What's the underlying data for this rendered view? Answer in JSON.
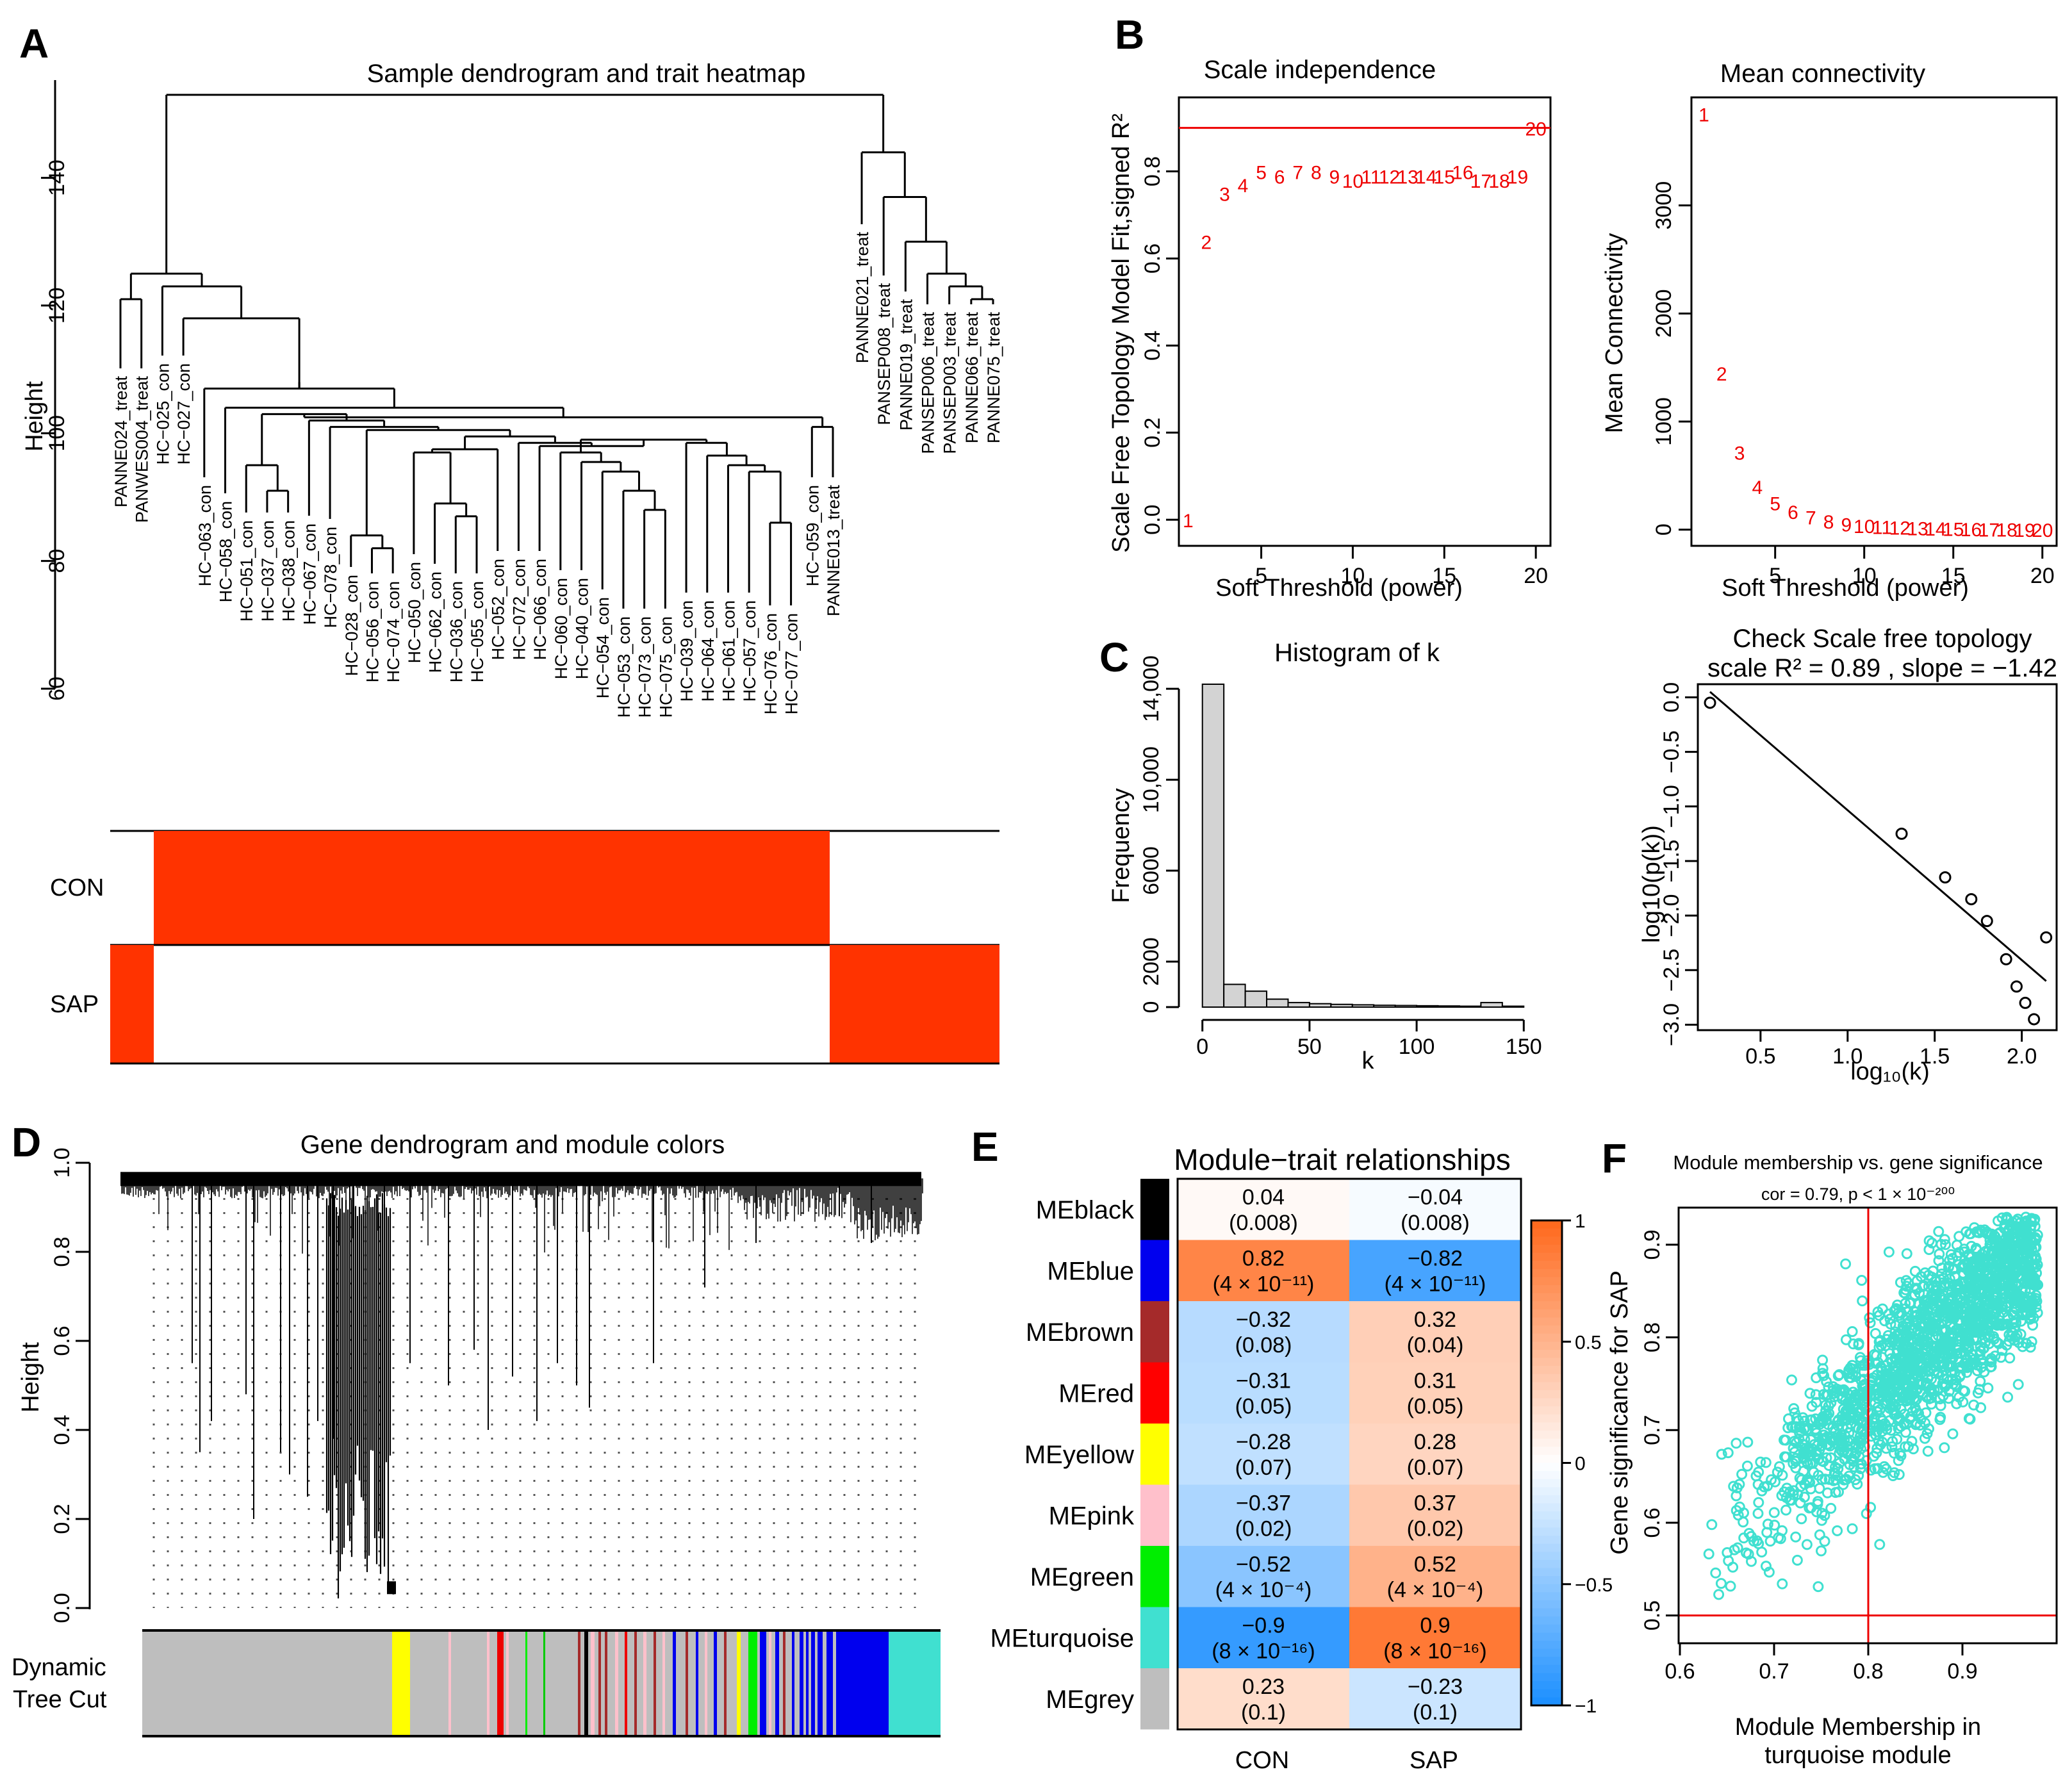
{
  "panels": {
    "A": {
      "label": "A",
      "title": "Sample dendrogram and trait heatmap",
      "ylabel": "Height",
      "yticks": [
        "60",
        "80",
        "100",
        "120",
        "140"
      ],
      "leaves": [
        "PANNE024_treat",
        "PANWES004_treat",
        "HC−025_con",
        "HC−027_con",
        "HC−063_con",
        "HC−058_con",
        "HC−051_con",
        "HC−037_con",
        "HC−038_con",
        "HC−067_con",
        "HC−078_con",
        "HC−028_con",
        "HC−056_con",
        "HC−074_con",
        "HC−050_con",
        "HC−062_con",
        "HC−036_con",
        "HC−055_con",
        "HC−052_con",
        "HC−072_con",
        "HC−066_con",
        "HC−060_con",
        "HC−040_con",
        "HC−054_con",
        "HC−053_con",
        "HC−073_con",
        "HC−075_con",
        "HC−039_con",
        "HC−064_con",
        "HC−061_con",
        "HC−057_con",
        "HC−076_con",
        "HC−077_con",
        "HC−059_con",
        "PANNE013_treat",
        "PANNE021_treat",
        "PANSEP008_treat",
        "PANNE019_treat",
        "PANSEP006_treat",
        "PANSEP003_treat",
        "PANNE066_treat",
        "PANNE075_treat"
      ],
      "traits": [
        "CON",
        "SAP"
      ],
      "trait_color": "#ff3300"
    },
    "B": {
      "label": "B",
      "left_title": "Scale independence",
      "left_ylabel": "Scale Free Topology Model Fit,signed R²",
      "right_title": "Mean connectivity",
      "right_ylabel": "Mean Connectivity",
      "xlabel": "Soft Threshold (power)",
      "xticks_left": [
        "5",
        "10",
        "15",
        "20"
      ],
      "yticks_left": [
        "0.0",
        "0.2",
        "0.4",
        "0.6",
        "0.8"
      ],
      "xticks_right": [
        "5",
        "10",
        "15",
        "20"
      ],
      "yticks_right": [
        "0",
        "1000",
        "2000",
        "3000"
      ]
    },
    "C": {
      "label": "C",
      "left_title": "Histogram of k",
      "left_xlabel": "k",
      "left_ylabel": "Frequency",
      "left_xticks": [
        "0",
        "50",
        "100",
        "150"
      ],
      "left_yticks": [
        "0",
        "2000",
        "6000",
        "10,000",
        "14,000"
      ],
      "right_title": "Check Scale free topology",
      "right_subtitle": "scale R² = 0.89 , slope = −1.42",
      "right_xlabel": "log₁₀(k)",
      "right_ylabel": "log10(p(k))",
      "right_xticks": [
        "0.5",
        "1.0",
        "1.5",
        "2.0"
      ],
      "right_yticks": [
        "0.0",
        "−0.5",
        "−1.0",
        "−1.5",
        "−2.0",
        "−2.5",
        "−3.0"
      ]
    },
    "D": {
      "label": "D",
      "title": "Gene dendrogram and module colors",
      "ylabel": "Height",
      "yticks": [
        "0.0",
        "0.2",
        "0.4",
        "0.6",
        "0.8",
        "1.0"
      ],
      "colorbar_label_1": "Dynamic",
      "colorbar_label_2": "Tree Cut"
    },
    "E": {
      "label": "E",
      "title": "Module−trait relationships",
      "columns": [
        "CON",
        "SAP"
      ],
      "legend_ticks": [
        "1",
        "0.5",
        "0",
        "−0.5",
        "−1"
      ]
    },
    "F": {
      "label": "F",
      "title": "Module membership vs. gene significance",
      "subtitle": "cor = 0.79, p < 1 × 10⁻²⁰⁰",
      "xlabel_1": "Module Membership in",
      "xlabel_2": "turquoise module",
      "ylabel": "Gene significance for SAP",
      "xticks": [
        "0.6",
        "0.7",
        "0.8",
        "0.9"
      ],
      "yticks": [
        "0.5",
        "0.6",
        "0.7",
        "0.8",
        "0.9"
      ],
      "point_color": "#40e0d0",
      "line_color": "#ee0000"
    }
  },
  "chart_data": [
    {
      "type": "scatter",
      "title": "Scale independence",
      "xlabel": "Soft Threshold (power)",
      "ylabel": "Scale Free Topology Model Fit,signed R²",
      "x": [
        1,
        2,
        3,
        4,
        5,
        6,
        7,
        8,
        9,
        10,
        11,
        12,
        13,
        14,
        15,
        16,
        17,
        18,
        19,
        20
      ],
      "y": [
        0.0,
        0.64,
        0.75,
        0.77,
        0.8,
        0.79,
        0.8,
        0.8,
        0.79,
        0.78,
        0.79,
        0.79,
        0.79,
        0.79,
        0.79,
        0.8,
        0.78,
        0.78,
        0.79,
        0.9
      ],
      "xlim": [
        1,
        20
      ],
      "ylim": [
        0,
        0.9
      ],
      "hline": 0.9
    },
    {
      "type": "scatter",
      "title": "Mean connectivity",
      "xlabel": "Soft Threshold (power)",
      "ylabel": "Mean Connectivity",
      "x": [
        1,
        2,
        3,
        4,
        5,
        6,
        7,
        8,
        9,
        10,
        11,
        12,
        13,
        14,
        15,
        16,
        17,
        18,
        19,
        20
      ],
      "y": [
        3850,
        1450,
        720,
        400,
        250,
        170,
        120,
        80,
        55,
        40,
        30,
        25,
        20,
        15,
        12,
        10,
        8,
        6,
        5,
        4
      ],
      "xlim": [
        1,
        20
      ],
      "ylim": [
        0,
        3850
      ]
    },
    {
      "type": "bar",
      "title": "Histogram of k",
      "xlabel": "k",
      "ylabel": "Frequency",
      "bin_edges": [
        0,
        10,
        20,
        30,
        40,
        50,
        60,
        70,
        80,
        90,
        100,
        110,
        120,
        130,
        140,
        150
      ],
      "values": [
        14200,
        1000,
        700,
        350,
        200,
        150,
        120,
        100,
        80,
        70,
        60,
        50,
        40,
        200,
        40
      ],
      "xlim": [
        0,
        150
      ],
      "ylim": [
        0,
        14200
      ]
    },
    {
      "type": "scatter",
      "title": "Check Scale free topology",
      "subtitle": "scale R² = 0.89 , slope = −1.42",
      "xlabel": "log₁₀(k)",
      "ylabel": "log10(p(k))",
      "x": [
        0.21,
        1.31,
        1.56,
        1.71,
        1.8,
        1.91,
        1.97,
        2.02,
        2.07,
        2.14
      ],
      "y": [
        -0.05,
        -1.25,
        -1.65,
        -1.85,
        -2.05,
        -2.4,
        -2.65,
        -2.8,
        -2.95,
        -2.2
      ],
      "fit_line": {
        "x": [
          0.21,
          2.14
        ],
        "y": [
          0.05,
          -2.6
        ]
      },
      "xlim": [
        0.2,
        2.14
      ],
      "ylim": [
        -2.98,
        0.08
      ]
    },
    {
      "type": "heatmap",
      "title": "Module−trait relationships",
      "rows": [
        "MEblack",
        "MEblue",
        "MEbrown",
        "MEred",
        "MEyellow",
        "MEpink",
        "MEgreen",
        "MEturquoise",
        "MEgrey"
      ],
      "row_colors": [
        "#000000",
        "#0000ee",
        "#a52a2a",
        "#ff0000",
        "#ffff00",
        "#ffc0cb",
        "#00ee00",
        "#40e0d0",
        "#bebebe"
      ],
      "columns": [
        "CON",
        "SAP"
      ],
      "values": [
        [
          0.04,
          -0.04
        ],
        [
          0.82,
          -0.82
        ],
        [
          -0.32,
          0.32
        ],
        [
          -0.31,
          0.31
        ],
        [
          -0.28,
          0.28
        ],
        [
          -0.37,
          0.37
        ],
        [
          -0.52,
          0.52
        ],
        [
          -0.9,
          0.9
        ],
        [
          0.23,
          -0.23
        ]
      ],
      "value_labels": [
        [
          "0.04",
          "−0.04"
        ],
        [
          "0.82",
          "−0.82"
        ],
        [
          "−0.32",
          "0.32"
        ],
        [
          "−0.31",
          "0.31"
        ],
        [
          "−0.28",
          "0.28"
        ],
        [
          "−0.37",
          "0.37"
        ],
        [
          "−0.52",
          "0.52"
        ],
        [
          "−0.9",
          "0.9"
        ],
        [
          "0.23",
          "−0.23"
        ]
      ],
      "p_labels": [
        [
          "(0.008)",
          "(0.008)"
        ],
        [
          "(4 × 10⁻¹¹)",
          "(4 × 10⁻¹¹)"
        ],
        [
          "(0.08)",
          "(0.04)"
        ],
        [
          "(0.05)",
          "(0.05)"
        ],
        [
          "(0.07)",
          "(0.07)"
        ],
        [
          "(0.02)",
          "(0.02)"
        ],
        [
          "(4 × 10⁻⁴)",
          "(4 × 10⁻⁴)"
        ],
        [
          "(8 × 10⁻¹⁶)",
          "(8 × 10⁻¹⁶)"
        ],
        [
          "(0.1)",
          "(0.1)"
        ]
      ],
      "color_range": [
        -1,
        1
      ]
    },
    {
      "type": "scatter",
      "title": "Module membership vs. gene significance",
      "subtitle": "cor = 0.79, p < 1 × 10⁻²⁰⁰",
      "xlabel": "Module Membership in turquoise module",
      "ylabel": "Gene significance for SAP",
      "xlim": [
        0.6,
        1.0
      ],
      "ylim": [
        0.47,
        0.94
      ],
      "vline": 0.8,
      "hline": 0.5,
      "n_points": 1800,
      "trend": {
        "slope": 0.95,
        "intercept": -0.03,
        "spread": 0.045
      }
    }
  ]
}
